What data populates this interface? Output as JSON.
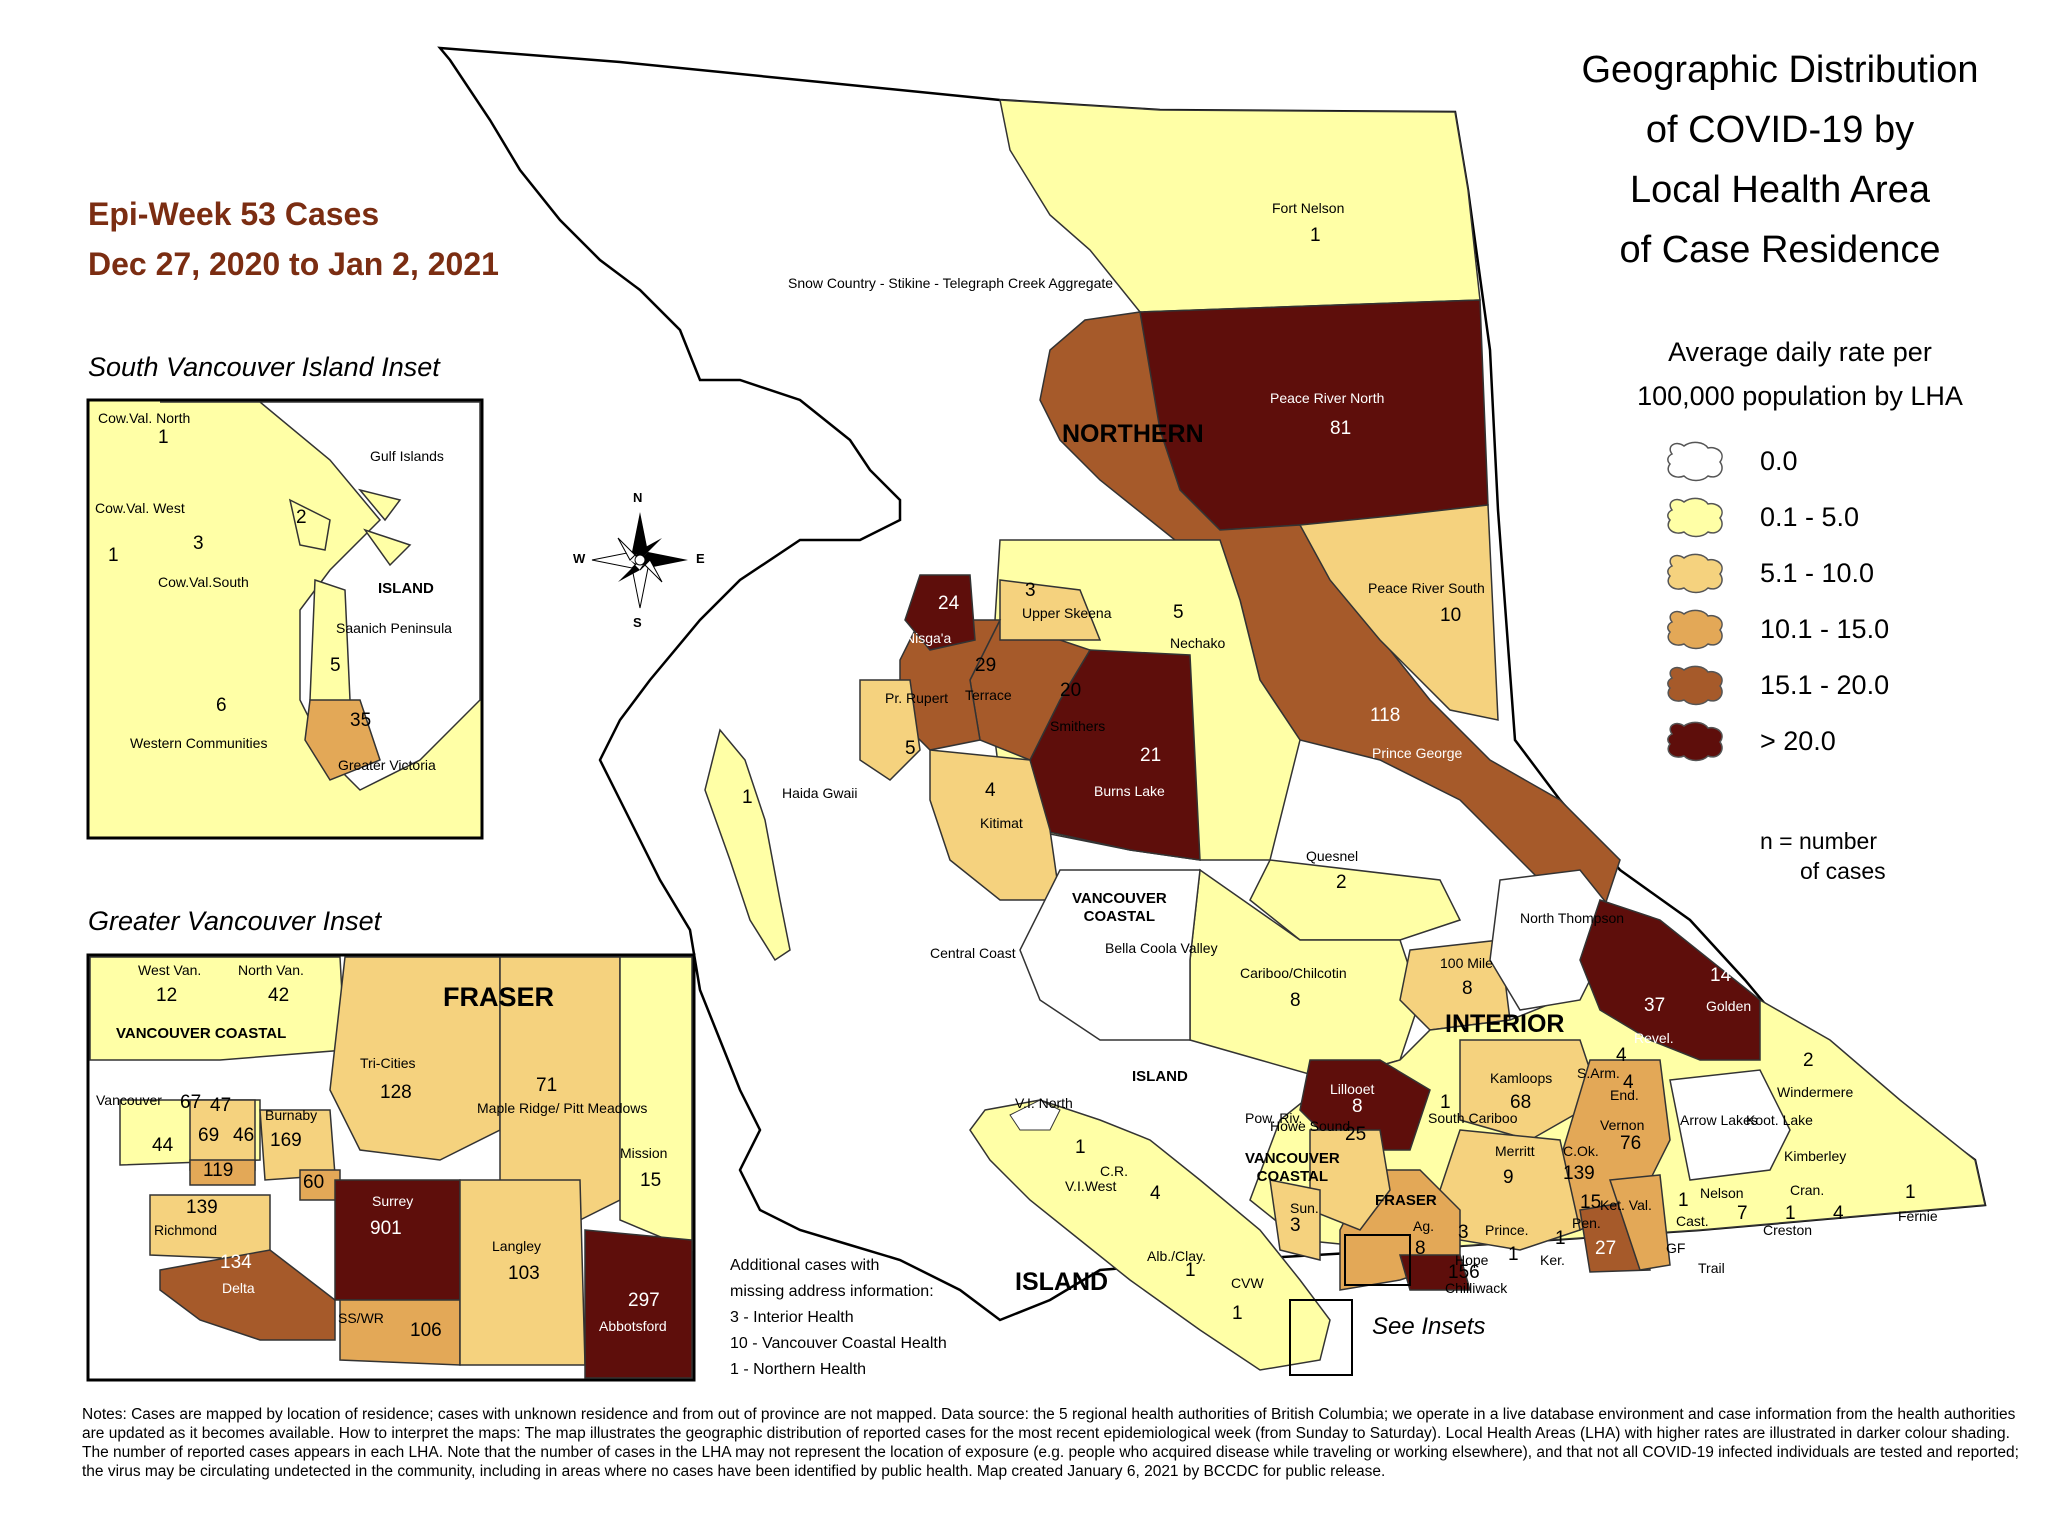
{
  "header": {
    "epi_week": "Epi-Week 53 Cases",
    "date_range": "Dec 27, 2020 to Jan 2, 2021"
  },
  "title_lines": [
    "Geographic Distribution",
    "of COVID-19 by",
    "Local Health Area",
    "of Case Residence"
  ],
  "legend": {
    "subtitle_1": "Average daily rate per",
    "subtitle_2": "100,000 population by LHA",
    "classes": [
      {
        "label": "0.0",
        "color": "#ffffff"
      },
      {
        "label": "0.1 - 5.0",
        "color": "#ffffa6"
      },
      {
        "label": "5.1 - 10.0",
        "color": "#f5d27e"
      },
      {
        "label": "10.1 - 15.0",
        "color": "#e3a857"
      },
      {
        "label": "15.1 - 20.0",
        "color": "#a65a2a"
      },
      {
        "label": "> 20.0",
        "color": "#5e0e0b"
      }
    ],
    "n_note_1": "n = number",
    "n_note_2": "of cases"
  },
  "insets": {
    "south_island_title": "South Vancouver Island Inset",
    "greater_vancouver_title": "Greater Vancouver Inset",
    "see_insets": "See Insets"
  },
  "regions": {
    "northern": "NORTHERN",
    "interior": "INTERIOR",
    "island": "ISLAND",
    "island_small": "ISLAND",
    "vancouver_coastal_1": "VANCOUVER",
    "vancouver_coastal_2": "COASTAL",
    "fraser": "FRASER",
    "inset_fraser": "FRASER",
    "inset_vch": "VANCOUVER COASTAL",
    "inset_island": "ISLAND"
  },
  "main_map_areas": [
    {
      "name": "Fort Nelson",
      "cases": "1"
    },
    {
      "name": "Snow Country - Stikine - Telegraph Creek Aggregate",
      "cases": ""
    },
    {
      "name": "Peace River North",
      "cases": "81"
    },
    {
      "name": "Peace River South",
      "cases": "10"
    },
    {
      "name": "Prince George",
      "cases": "118"
    },
    {
      "name": "Nechako",
      "cases": "5"
    },
    {
      "name": "Nisga'a",
      "cases": "24"
    },
    {
      "name": "Upper Skeena",
      "cases": "3"
    },
    {
      "name": "Terrace",
      "cases": "29"
    },
    {
      "name": "Smithers",
      "cases": "20"
    },
    {
      "name": "Burns Lake",
      "cases": "21"
    },
    {
      "name": "Pr. Rupert",
      "cases": "5"
    },
    {
      "name": "Kitimat",
      "cases": "4"
    },
    {
      "name": "Haida Gwaii",
      "cases": "1"
    },
    {
      "name": "Quesnel",
      "cases": "2"
    },
    {
      "name": "Central Coast",
      "cases": ""
    },
    {
      "name": "Bella Coola Valley",
      "cases": ""
    },
    {
      "name": "Cariboo/Chilcotin",
      "cases": "8"
    },
    {
      "name": "North Thompson",
      "cases": ""
    },
    {
      "name": "100 Mile",
      "cases": "8"
    },
    {
      "name": "Golden",
      "cases": "14"
    },
    {
      "name": "Revel.",
      "cases": "37"
    },
    {
      "name": "Windermere",
      "cases": "2"
    },
    {
      "name": "Lillooet",
      "cases": "8"
    },
    {
      "name": "South Cariboo",
      "cases": "1"
    },
    {
      "name": "Kamloops",
      "cases": "68"
    },
    {
      "name": "S.Arm.",
      "cases": "4"
    },
    {
      "name": "End.",
      "cases": "4"
    },
    {
      "name": "Vernon",
      "cases": "76"
    },
    {
      "name": "Arrow Lakes",
      "cases": ""
    },
    {
      "name": "Koot. Lake",
      "cases": ""
    },
    {
      "name": "Kimberley",
      "cases": ""
    },
    {
      "name": "Howe Sound",
      "cases": "25"
    },
    {
      "name": "Pow. Riv.",
      "cases": ""
    },
    {
      "name": "V.I. North",
      "cases": "1"
    },
    {
      "name": "Merritt",
      "cases": "9"
    },
    {
      "name": "C.Ok.",
      "cases": "139"
    },
    {
      "name": "V.I.West",
      "cases": ""
    },
    {
      "name": "C.R.",
      "cases": "4"
    },
    {
      "name": "Sun.",
      "cases": "3"
    },
    {
      "name": "Ag.",
      "cases": "8"
    },
    {
      "name": "Hope",
      "cases": "3"
    },
    {
      "name": "Prince.",
      "cases": "1"
    },
    {
      "name": "Ker.",
      "cases": "1"
    },
    {
      "name": "Pen.",
      "cases": "15"
    },
    {
      "name": "Ket. Val.",
      "cases": ""
    },
    {
      "name": "Nelson",
      "cases": "7"
    },
    {
      "name": "Cast.",
      "cases": "1"
    },
    {
      "name": "Creston",
      "cases": "1"
    },
    {
      "name": "Cran.",
      "cases": "4"
    },
    {
      "name": "Fernie",
      "cases": "1"
    },
    {
      "name": "Alb./Clay.",
      "cases": "1"
    },
    {
      "name": "CVW",
      "cases": "1"
    },
    {
      "name": "Chilliwack",
      "cases": "156"
    },
    {
      "name": "S.OK.",
      "cases": "27"
    },
    {
      "name": "GF",
      "cases": ""
    },
    {
      "name": "Trail",
      "cases": ""
    }
  ],
  "south_island_areas": [
    {
      "name": "Cow.Val. North",
      "cases": "1"
    },
    {
      "name": "Gulf Islands",
      "cases": "2"
    },
    {
      "name": "Cow.Val. West",
      "cases": "1"
    },
    {
      "name": "Cow.Val.South",
      "cases": "3"
    },
    {
      "name": "Saanich Peninsula",
      "cases": "5"
    },
    {
      "name": "Western Communities",
      "cases": "6"
    },
    {
      "name": "Greater Victoria",
      "cases": "35"
    }
  ],
  "greater_vancouver_areas": [
    {
      "name": "West Van.",
      "cases": "12"
    },
    {
      "name": "North Van.",
      "cases": "42"
    },
    {
      "name": "Tri-Cities",
      "cases": "128"
    },
    {
      "name": "Maple Ridge/ Pitt Meadows",
      "cases": "71"
    },
    {
      "name": "Mission",
      "cases": "15"
    },
    {
      "name": "Vancouver",
      "cases": "67"
    },
    {
      "name": "Burnaby",
      "cases": "169"
    },
    {
      "name": "Richmond",
      "cases": "139"
    },
    {
      "name": "Surrey",
      "cases": "901"
    },
    {
      "name": "Langley",
      "cases": "103"
    },
    {
      "name": "Delta",
      "cases": "134"
    },
    {
      "name": "SS/WR",
      "cases": "106"
    },
    {
      "name": "Abbotsford",
      "cases": "297"
    }
  ],
  "gv_small_numbers": [
    "47",
    "69",
    "46",
    "44",
    "119",
    "60"
  ],
  "additional_cases": {
    "heading_1": "Additional cases with",
    "heading_2": "missing address information:",
    "lines": [
      "3 - Interior Health",
      "10 - Vancouver Coastal Health",
      "1 - Northern Health"
    ]
  },
  "notes": "Notes: Cases are mapped by location of residence; cases with unknown residence and from out of province are not mapped. Data source: the 5 regional health authorities of British Columbia; we operate in a live database environment and case information from the health authorities are updated as it becomes available. How to interpret the maps: The map illustrates the geographic distribution of reported cases for the most recent epidemiological week (from Sunday to Saturday). Local Health Areas (LHA) with higher rates are illustrated in darker colour shading. The number of reported cases appears in each LHA. Note that the number of cases in the LHA may not represent the location of exposure (e.g. people who acquired disease while traveling or working elsewhere), and that not all COVID-19 infected individuals are tested and reported; the virus may be circulating undetected in the community, including in areas where no cases have been identified by public health. Map created January 6, 2021 by BCCDC for public release.",
  "compass": {
    "n": "N",
    "s": "S",
    "e": "E",
    "w": "W"
  }
}
